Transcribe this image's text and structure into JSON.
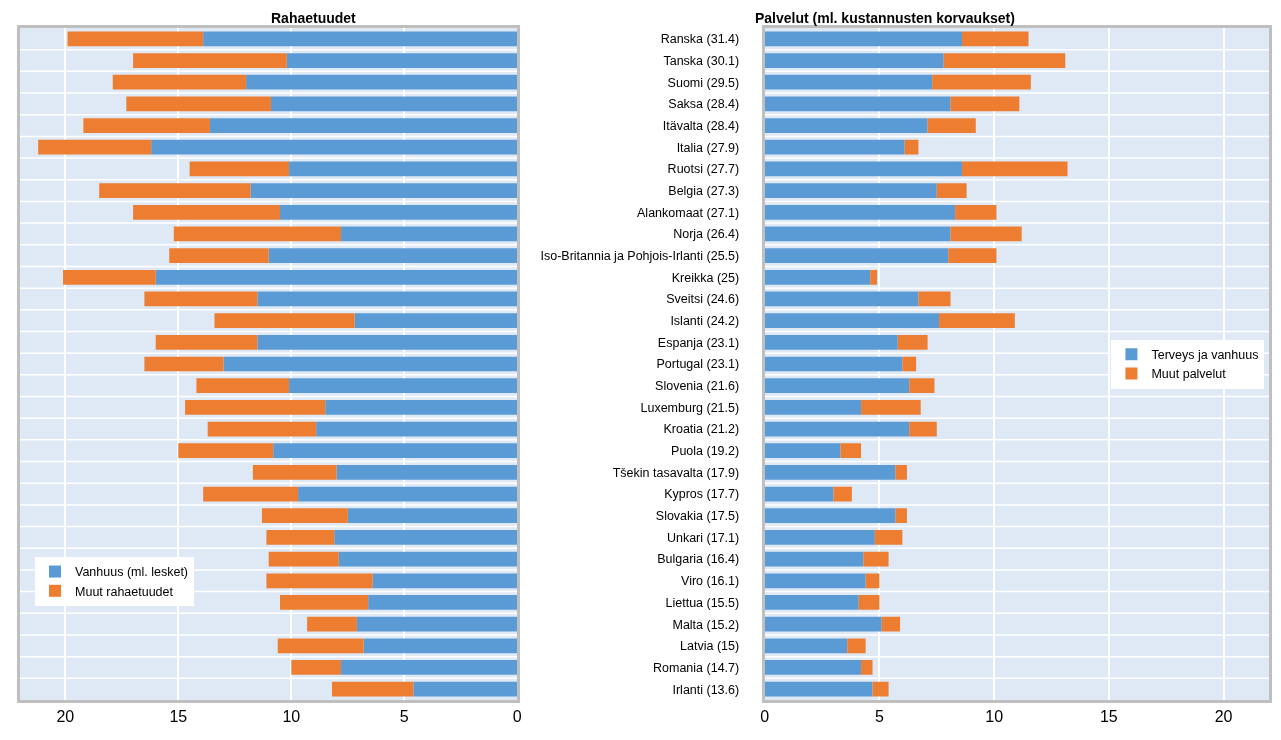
{
  "chart_data": [
    {
      "type": "bar",
      "title": "Rahaetuudet",
      "orientation": "horizontal",
      "stacked": true,
      "categories": [
        null,
        null,
        null,
        null,
        null,
        null,
        null,
        null,
        null,
        null,
        null,
        null,
        null,
        null,
        null,
        null,
        null,
        null,
        null,
        null,
        null,
        null,
        null,
        null,
        null,
        null,
        null,
        null,
        null,
        null,
        null
      ],
      "series": [
        {
          "name": "Vanhuus (ml. lesket)",
          "color": "#5b9bd5",
          "values": [
            13.9,
            10.2,
            12.0,
            10.9,
            13.6,
            16.2,
            10.1,
            11.8,
            10.5,
            7.8,
            11.0,
            16.0,
            11.5,
            7.2,
            11.5,
            13.0,
            10.1,
            8.5,
            8.9,
            10.8,
            8.0,
            9.7,
            7.5,
            8.1,
            7.9,
            6.4,
            6.6,
            7.1,
            6.8,
            7.8,
            4.6
          ]
        },
        {
          "name": "Muut rahaetuudet",
          "color": "#ed7d31",
          "values": [
            6.0,
            6.8,
            5.9,
            6.4,
            5.6,
            5.0,
            4.4,
            6.7,
            6.5,
            7.4,
            4.4,
            4.1,
            5.0,
            6.2,
            4.5,
            3.5,
            4.1,
            6.2,
            4.8,
            4.2,
            3.7,
            4.2,
            3.8,
            3.0,
            3.1,
            4.7,
            3.9,
            2.2,
            3.8,
            2.2,
            3.6
          ]
        }
      ],
      "xlim": [
        22,
        0
      ],
      "xticks": [
        20,
        15,
        10,
        5,
        0
      ],
      "grid": true,
      "legend": "bottom left"
    },
    {
      "type": "bar",
      "title": "Palvelut (ml. kustannusten korvaukset)",
      "orientation": "horizontal",
      "stacked": true,
      "categories": [
        "Ranska (31.4)",
        "Tanska (30.1)",
        "Suomi (29.5)",
        "Saksa (28.4)",
        "Itävalta (28.4)",
        "Italia (27.9)",
        "Ruotsi (27.7)",
        "Belgia (27.3)",
        "Alankomaat (27.1)",
        "Norja (26.4)",
        "Iso-Britannia ja Pohjois-Irlanti (25.5)",
        "Kreikka (25)",
        "Sveitsi (24.6)",
        "Islanti (24.2)",
        "Espanja (23.1)",
        "Portugal (23.1)",
        "Slovenia (21.6)",
        "Luxemburg (21.5)",
        "Kroatia (21.2)",
        "Puola (19.2)",
        "Tšekin tasavalta (17.9)",
        "Kypros (17.7)",
        "Slovakia (17.5)",
        "Unkari (17.1)",
        "Bulgaria (16.4)",
        "Viro (16.1)",
        "Liettua (15.5)",
        "Malta (15.2)",
        "Latvia (15)",
        "Romania (14.7)",
        "Irlanti (13.6)"
      ],
      "series": [
        {
          "name": "Terveys ja vanhuus",
          "color": "#5b9bd5",
          "values": [
            8.6,
            7.8,
            7.3,
            8.1,
            7.1,
            6.1,
            8.6,
            7.5,
            8.3,
            8.1,
            8.0,
            4.6,
            6.7,
            7.6,
            5.8,
            6.0,
            6.3,
            4.2,
            6.3,
            3.3,
            5.7,
            3.0,
            5.7,
            4.8,
            4.3,
            4.4,
            4.1,
            5.1,
            3.6,
            4.2,
            4.7
          ]
        },
        {
          "name": "Muut palvelut",
          "color": "#ed7d31",
          "values": [
            2.9,
            5.3,
            4.3,
            3.0,
            2.1,
            0.6,
            4.6,
            1.3,
            1.8,
            3.1,
            2.1,
            0.3,
            1.4,
            3.3,
            1.3,
            0.6,
            1.1,
            2.6,
            1.2,
            0.9,
            0.5,
            0.8,
            0.5,
            1.2,
            1.1,
            0.6,
            0.9,
            0.8,
            0.8,
            0.5,
            0.7
          ]
        }
      ],
      "xlim": [
        0,
        22
      ],
      "xticks": [
        0,
        5,
        10,
        15,
        20
      ],
      "grid": true,
      "legend": "right"
    }
  ]
}
